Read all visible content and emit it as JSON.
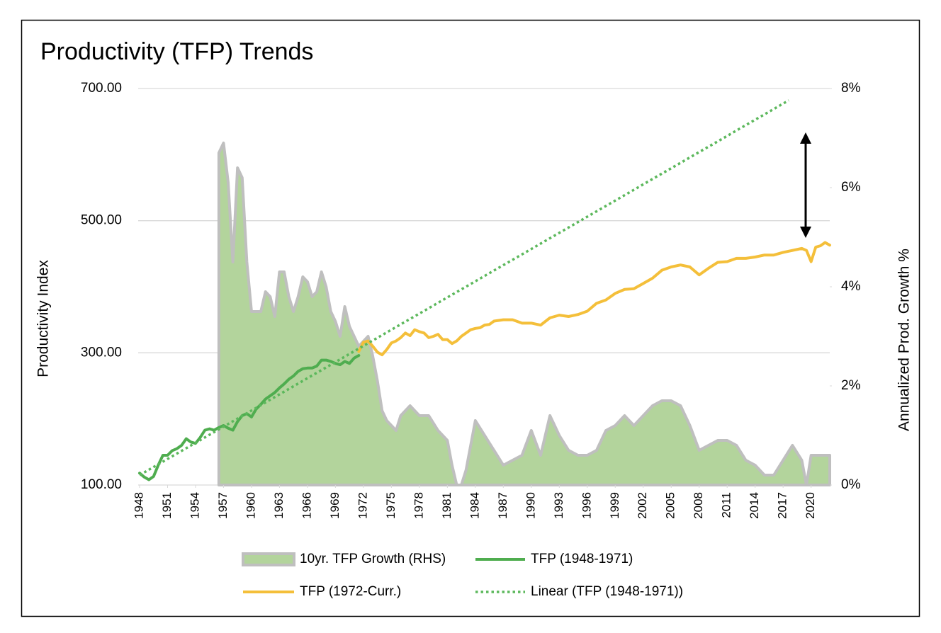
{
  "chart_data": {
    "type": "line",
    "title": "Productivity (TFP) Trends",
    "y_label": "Productivity Index",
    "y2_label": "Annualized Prod. Growth %",
    "xlim": [
      1948,
      2022
    ],
    "xticks": [
      1948,
      1951,
      1954,
      1957,
      1960,
      1963,
      1966,
      1969,
      1972,
      1975,
      1978,
      1981,
      1984,
      1987,
      1990,
      1993,
      1996,
      1999,
      2002,
      2005,
      2008,
      2011,
      2014,
      2017,
      2020
    ],
    "ylim": [
      100,
      700
    ],
    "yticks": [
      {
        "value": 100,
        "label": "100.00"
      },
      {
        "value": 300,
        "label": "300.00"
      },
      {
        "value": 500,
        "label": "500.00"
      },
      {
        "value": 700,
        "label": "700.00"
      }
    ],
    "y2lim": [
      0,
      8
    ],
    "y2ticks": [
      {
        "value": 0,
        "label": "0%"
      },
      {
        "value": 2,
        "label": "2%"
      },
      {
        "value": 4,
        "label": "4%"
      },
      {
        "value": 6,
        "label": "6%"
      },
      {
        "value": 8,
        "label": "8%"
      }
    ],
    "grid": true,
    "legend": "bottom",
    "series": [
      {
        "name": "10yr. TFP Growth (RHS)",
        "kind": "area",
        "axis": "y2",
        "color": "#b3d49c",
        "edge": "#bfbfbf",
        "x": [
          1956.5,
          1957,
          1957.5,
          1958,
          1958.5,
          1959,
          1959.5,
          1960,
          1960.5,
          1961,
          1961.5,
          1962,
          1962.5,
          1963,
          1963.5,
          1964,
          1964.5,
          1965,
          1965.5,
          1966,
          1966.5,
          1967,
          1967.5,
          1968,
          1968.5,
          1969,
          1969.5,
          1970,
          1970.5,
          1971,
          1971.5,
          1972,
          1972.5,
          1973,
          1973.5,
          1974,
          1974.5,
          1975,
          1975.5,
          1976,
          1977,
          1978,
          1979,
          1980,
          1981,
          1981.5,
          1982,
          1982.5,
          1983,
          1984,
          1985,
          1986,
          1987,
          1988,
          1989,
          1990,
          1991,
          1992,
          1993,
          1994,
          1995,
          1996,
          1997,
          1998,
          1999,
          2000,
          2001,
          2002,
          2003,
          2004,
          2005,
          2006,
          2007,
          2008,
          2009,
          2010,
          2011,
          2012,
          2013,
          2014,
          2015,
          2016,
          2017,
          2018,
          2019,
          2019.5,
          2020,
          2021,
          2022
        ],
        "values": [
          6.7,
          6.9,
          6.1,
          4.5,
          6.4,
          6.2,
          4.5,
          3.5,
          3.5,
          3.5,
          3.9,
          3.8,
          3.4,
          4.3,
          4.3,
          3.8,
          3.5,
          3.8,
          4.2,
          4.1,
          3.8,
          3.9,
          4.3,
          4.0,
          3.5,
          3.3,
          3.0,
          3.6,
          3.2,
          3.0,
          2.8,
          2.9,
          3.0,
          2.6,
          2.1,
          1.5,
          1.3,
          1.2,
          1.1,
          1.4,
          1.6,
          1.4,
          1.4,
          1.1,
          0.9,
          0.4,
          0.0,
          0.0,
          0.3,
          1.3,
          1.0,
          0.7,
          0.4,
          0.5,
          0.6,
          1.1,
          0.6,
          1.4,
          1.0,
          0.7,
          0.6,
          0.6,
          0.7,
          1.1,
          1.2,
          1.4,
          1.2,
          1.4,
          1.6,
          1.7,
          1.7,
          1.6,
          1.2,
          0.7,
          0.8,
          0.9,
          0.9,
          0.8,
          0.5,
          0.4,
          0.2,
          0.2,
          0.5,
          0.8,
          0.5,
          0.0,
          0.6,
          0.6,
          0.6
        ]
      },
      {
        "name": "TFP (1948-1971)",
        "kind": "line",
        "color": "#4fad4f",
        "x": [
          1948,
          1948.5,
          1949,
          1949.5,
          1950,
          1950.5,
          1951,
          1951.5,
          1952,
          1952.5,
          1953,
          1953.5,
          1954,
          1954.5,
          1955,
          1955.5,
          1956,
          1956.5,
          1957,
          1957.5,
          1958,
          1958.5,
          1959,
          1959.5,
          1960,
          1960.5,
          1961,
          1961.5,
          1962,
          1962.5,
          1963,
          1963.5,
          1964,
          1964.5,
          1965,
          1965.5,
          1966,
          1966.5,
          1967,
          1967.5,
          1968,
          1968.5,
          1969,
          1969.5,
          1970,
          1970.5,
          1971,
          1971.5
        ],
        "values": [
          118,
          112,
          108,
          113,
          130,
          145,
          145,
          152,
          155,
          160,
          170,
          165,
          163,
          172,
          183,
          185,
          183,
          187,
          190,
          186,
          183,
          196,
          205,
          208,
          203,
          215,
          222,
          230,
          235,
          240,
          247,
          253,
          260,
          265,
          272,
          276,
          277,
          277,
          280,
          289,
          289,
          287,
          284,
          282,
          287,
          284,
          292,
          296
        ]
      },
      {
        "name": "TFP (1972-Curr.)",
        "kind": "line",
        "color": "#f4bf3a",
        "x": [
          1971.5,
          1972,
          1972.5,
          1973,
          1973.5,
          1974,
          1974.5,
          1975,
          1975.5,
          1976,
          1976.5,
          1977,
          1977.5,
          1978,
          1978.5,
          1979,
          1979.5,
          1980,
          1980.5,
          1981,
          1981.5,
          1982,
          1982.5,
          1983,
          1983.5,
          1984,
          1984.5,
          1985,
          1985.5,
          1986,
          1987,
          1988,
          1989,
          1990,
          1991,
          1992,
          1993,
          1994,
          1995,
          1996,
          1997,
          1998,
          1999,
          2000,
          2001,
          2002,
          2003,
          2004,
          2005,
          2006,
          2007,
          2008,
          2009,
          2010,
          2011,
          2012,
          2013,
          2014,
          2015,
          2016,
          2017,
          2018,
          2019,
          2019.5,
          2020,
          2020.5,
          2021,
          2021.5,
          2022
        ],
        "values": [
          302,
          316,
          318,
          310,
          301,
          297,
          305,
          315,
          318,
          323,
          330,
          326,
          335,
          332,
          330,
          323,
          325,
          328,
          320,
          320,
          314,
          318,
          325,
          330,
          335,
          337,
          338,
          342,
          343,
          348,
          350,
          350,
          345,
          345,
          342,
          353,
          357,
          355,
          358,
          363,
          375,
          380,
          390,
          396,
          397,
          405,
          413,
          425,
          430,
          433,
          430,
          418,
          428,
          437,
          438,
          443,
          443,
          445,
          448,
          448,
          452,
          455,
          458,
          455,
          438,
          460,
          462,
          467,
          463
        ]
      },
      {
        "name": "Linear (TFP (1948-1971))",
        "kind": "line",
        "style": "dotted",
        "color": "#5cb85c",
        "x": [
          1948,
          2017.6
        ],
        "values": [
          115,
          682
        ]
      }
    ]
  }
}
